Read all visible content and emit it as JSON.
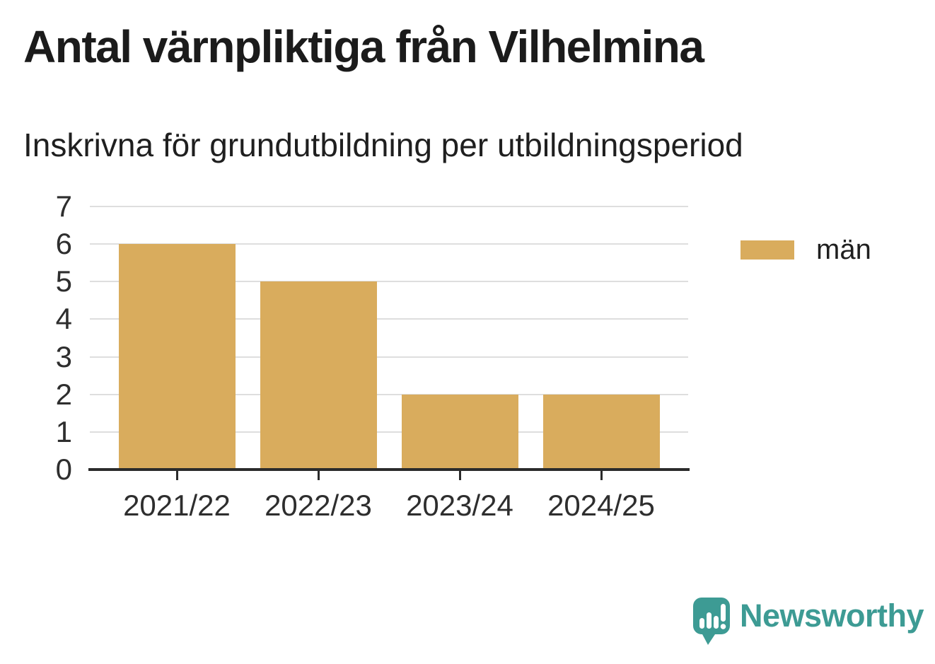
{
  "header": {
    "title": "Antal värnpliktiga från Vilhelmina",
    "subtitle": "Inskrivna för grundutbildning per utbildningsperiod"
  },
  "chart_data": {
    "type": "bar",
    "title": "Antal värnpliktiga från Vilhelmina",
    "subtitle": "Inskrivna för grundutbildning per utbildningsperiod",
    "categories": [
      "2021/22",
      "2022/23",
      "2023/24",
      "2024/25"
    ],
    "series": [
      {
        "name": "män",
        "values": [
          6,
          5,
          2,
          2
        ],
        "color": "#D9AC5D"
      }
    ],
    "xlabel": "",
    "ylabel": "",
    "ylim": [
      0,
      7
    ],
    "yticks": [
      0,
      1,
      2,
      3,
      4,
      5,
      6,
      7
    ],
    "grid": true,
    "legend_position": "right"
  },
  "footer": {
    "brand": "Newsworthy"
  },
  "colors": {
    "bar": "#D9AC5D",
    "brand_teal": "#3D9B94",
    "gridline": "#DEDEDE",
    "axis": "#2B2B2B",
    "text": "#1B1B1B"
  }
}
